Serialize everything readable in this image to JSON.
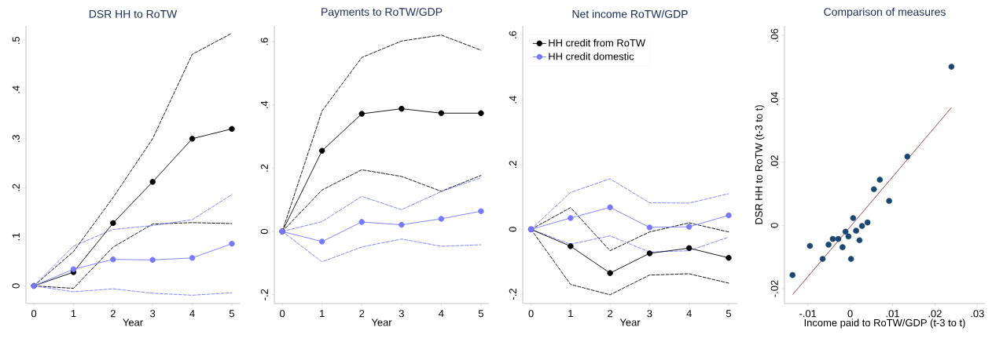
{
  "chart_data": [
    {
      "type": "line",
      "title": "DSR HH to RoTW",
      "xlabel": "Year",
      "x": [
        0,
        1,
        2,
        3,
        4,
        5
      ],
      "xlim": [
        -0.2,
        5.2
      ],
      "ylim": [
        -0.036,
        0.53
      ],
      "xticks": [
        0,
        1,
        2,
        3,
        4,
        5
      ],
      "yticks": [
        0,
        {
          "value": 0.1,
          "label": ".1"
        },
        {
          "value": 0.2,
          "label": ".2"
        },
        {
          "value": 0.3,
          "label": ".3"
        },
        {
          "value": 0.4,
          "label": ".4"
        },
        {
          "value": 0.5,
          "label": ".5"
        }
      ],
      "series": [
        {
          "color": "#000000",
          "line_style": "dashed",
          "marker": "none",
          "values": [
            0,
            0.07,
            0.18,
            0.3,
            0.472,
            0.515
          ]
        },
        {
          "color": "#000000",
          "line_style": "dashed",
          "marker": "none",
          "values": [
            0,
            -0.005,
            0.079,
            0.126,
            0.129,
            0.127
          ]
        },
        {
          "color": "#7878ff",
          "line_style": "dashed",
          "marker": "none",
          "values": [
            0,
            0.081,
            0.115,
            0.123,
            0.135,
            0.186
          ]
        },
        {
          "color": "#7878ff",
          "line_style": "dashed",
          "marker": "none",
          "values": [
            0,
            -0.012,
            -0.006,
            -0.015,
            -0.019,
            -0.014
          ]
        },
        {
          "color": "#000000",
          "line_style": "solid",
          "marker": "circle",
          "values": [
            0,
            0.028,
            0.128,
            0.212,
            0.3,
            0.32
          ]
        },
        {
          "color": "#7878ff",
          "line_style": "solid",
          "marker": "circle",
          "values": [
            0,
            0.034,
            0.054,
            0.053,
            0.057,
            0.086
          ]
        }
      ]
    },
    {
      "type": "line",
      "title": "Payments to RoTW/GDP",
      "xlabel": "Year",
      "x": [
        0,
        1,
        2,
        3,
        4,
        5
      ],
      "xlim": [
        -0.2,
        5.2
      ],
      "ylim": [
        -0.228,
        0.65
      ],
      "xticks": [
        0,
        1,
        2,
        3,
        4,
        5
      ],
      "yticks": [
        {
          "value": -0.2,
          "label": "-.2"
        },
        0,
        {
          "value": 0.2,
          "label": ".2"
        },
        {
          "value": 0.4,
          "label": ".4"
        },
        {
          "value": 0.6,
          "label": ".6"
        }
      ],
      "series": [
        {
          "color": "#000000",
          "line_style": "dashed",
          "marker": "none",
          "values": [
            0,
            0.381,
            0.55,
            0.602,
            0.621,
            0.573
          ]
        },
        {
          "color": "#000000",
          "line_style": "dashed",
          "marker": "none",
          "values": [
            0,
            0.131,
            0.195,
            0.174,
            0.127,
            0.177
          ]
        },
        {
          "color": "#7878ff",
          "line_style": "dashed",
          "marker": "none",
          "values": [
            0,
            0.031,
            0.111,
            0.069,
            0.126,
            0.17
          ]
        },
        {
          "color": "#7878ff",
          "line_style": "dashed",
          "marker": "none",
          "values": [
            0,
            -0.096,
            -0.049,
            -0.024,
            -0.047,
            -0.042
          ]
        },
        {
          "color": "#000000",
          "line_style": "solid",
          "marker": "circle",
          "values": [
            0,
            0.255,
            0.372,
            0.388,
            0.374,
            0.374
          ]
        },
        {
          "color": "#7878ff",
          "line_style": "solid",
          "marker": "circle",
          "values": [
            0,
            -0.032,
            0.03,
            0.021,
            0.04,
            0.064
          ]
        }
      ]
    },
    {
      "type": "line",
      "title": "Net income RoTW/GDP",
      "xlabel": "Year",
      "x": [
        0,
        1,
        2,
        3,
        4,
        5
      ],
      "xlim": [
        -0.21,
        5.22
      ],
      "ylim": [
        -0.229,
        0.628
      ],
      "xticks": [
        0,
        1,
        2,
        3,
        4,
        5
      ],
      "yticks": [
        {
          "value": -0.2,
          "label": "-.2"
        },
        0,
        {
          "value": 0.2,
          "label": ".2"
        },
        {
          "value": 0.4,
          "label": ".4"
        },
        {
          "value": 0.6,
          "label": ".6"
        }
      ],
      "legend": "top left",
      "series": [
        {
          "color": "#000000",
          "line_style": "dashed",
          "marker": "none",
          "values": [
            0,
            0.067,
            -0.066,
            -0.008,
            0.02,
            -0.008
          ]
        },
        {
          "color": "#000000",
          "line_style": "dashed",
          "marker": "none",
          "values": [
            0,
            -0.17,
            -0.202,
            -0.141,
            -0.137,
            -0.166
          ]
        },
        {
          "color": "#7878ff",
          "line_style": "dashed",
          "marker": "none",
          "values": [
            0,
            0.114,
            0.156,
            0.082,
            0.081,
            0.11
          ]
        },
        {
          "color": "#7878ff",
          "line_style": "dashed",
          "marker": "none",
          "values": [
            0,
            -0.046,
            -0.02,
            -0.07,
            -0.066,
            -0.024
          ]
        },
        {
          "name": "HH credit from RoTW",
          "color": "#000000",
          "line_style": "solid",
          "marker": "circle",
          "values": [
            0,
            -0.052,
            -0.135,
            -0.074,
            -0.058,
            -0.088
          ]
        },
        {
          "name": "HH credit domestic",
          "color": "#7878ff",
          "line_style": "solid",
          "marker": "circle",
          "values": [
            0,
            0.035,
            0.068,
            0.006,
            0.008,
            0.043
          ]
        }
      ]
    },
    {
      "type": "scatter",
      "title": "Comparison of measures",
      "xlabel": "Income paid to RoTW/GDP (t-3 to t)",
      "ylabel": "DSR HH to RoTW (t-3 to t)",
      "xlim": [
        -0.0155,
        0.0318
      ],
      "ylim": [
        -0.0247,
        0.063
      ],
      "xticks": [
        {
          "value": -0.01,
          "label": "-.01"
        },
        0,
        {
          "value": 0.01,
          "label": ".01"
        },
        {
          "value": 0.02,
          "label": ".02"
        },
        {
          "value": 0.03,
          "label": ".03"
        }
      ],
      "yticks": [
        {
          "value": -0.02,
          "label": "-.02"
        },
        0,
        {
          "value": 0.02,
          "label": ".02"
        },
        {
          "value": 0.04,
          "label": ".04"
        },
        {
          "value": 0.06,
          "label": ".06"
        }
      ],
      "series": [
        {
          "color": "#1a476f",
          "marker": "circle",
          "x": [
            -0.0136,
            -0.0095,
            -0.0065,
            -0.0051,
            -0.0041,
            -0.0028,
            -0.0018,
            -0.0011,
            -0.0004,
            0.0002,
            0.0007,
            0.0014,
            0.0022,
            0.0028,
            0.0041,
            0.0056,
            0.007,
            0.0092,
            0.0135,
            0.0239
          ],
          "values": [
            -0.0157,
            -0.0065,
            -0.0106,
            -0.0061,
            -0.0043,
            -0.0043,
            -0.0069,
            -0.002,
            -0.0035,
            -0.0106,
            0.0023,
            -0.0017,
            -0.0047,
            -0.0002,
            0.0009,
            0.0114,
            0.0144,
            0.0077,
            0.0217,
            0.0501
          ]
        },
        {
          "type": "line",
          "color": "#a0312f",
          "marker": "none",
          "line_style": "solid",
          "x": [
            -0.0136,
            0.0239
          ],
          "values": [
            -0.0219,
            0.0372
          ]
        }
      ]
    }
  ]
}
